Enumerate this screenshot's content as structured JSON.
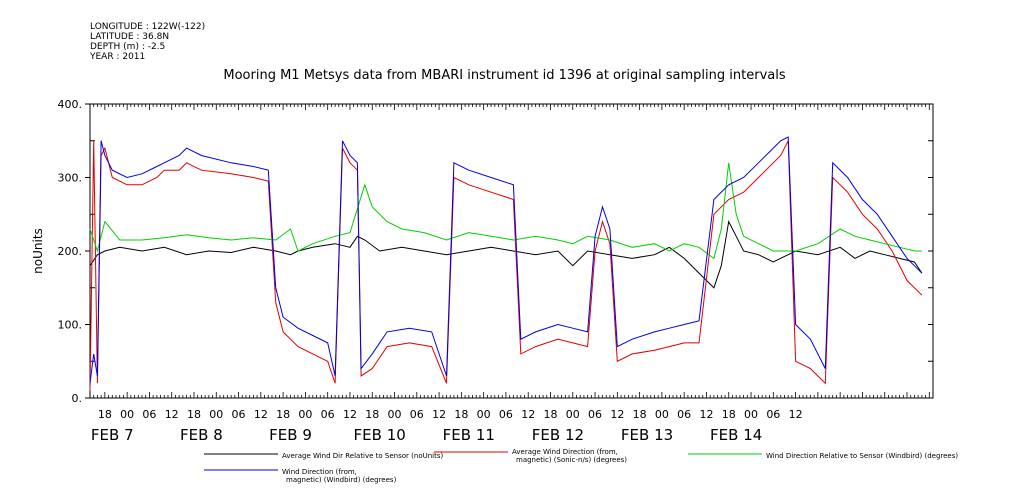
{
  "header": {
    "longitude": "LONGITUDE : 122W(-122)",
    "latitude": "LATITUDE : 36.8N",
    "depth": "DEPTH (m) : -2.5",
    "year": "YEAR : 2011"
  },
  "chart_data": {
    "type": "line",
    "title": "Mooring M1 Metsys data from MBARI instrument id 1396 at original sampling intervals",
    "ylabel": "noUnits",
    "xlabel": "",
    "ylim": [
      0,
      400
    ],
    "yticks": [
      "0.",
      "100.",
      "200.",
      "300.",
      "400."
    ],
    "xlim_hours": [
      -10,
      217
    ],
    "hour_ticks": [
      "18",
      "00",
      "06",
      "12",
      "18",
      "00",
      "06",
      "12",
      "18",
      "00",
      "06",
      "12",
      "18",
      "00",
      "06",
      "12",
      "18",
      "00",
      "06",
      "12",
      "18",
      "00",
      "06",
      "12",
      "18",
      "00",
      "06",
      "12",
      "18",
      "00",
      "06",
      "12"
    ],
    "day_labels": [
      "FEB  7",
      "FEB  8",
      "FEB  9",
      "FEB 10",
      "FEB 11",
      "FEB 12",
      "FEB 13",
      "FEB 14"
    ],
    "grid": false,
    "series": [
      {
        "name": "Average Wind Dir Relative to Sensor (noUnits)",
        "color": "#000000",
        "points": [
          [
            -10,
            180
          ],
          [
            -8,
            195
          ],
          [
            -6,
            200
          ],
          [
            -2,
            205
          ],
          [
            4,
            200
          ],
          [
            10,
            205
          ],
          [
            16,
            195
          ],
          [
            22,
            200
          ],
          [
            28,
            198
          ],
          [
            34,
            205
          ],
          [
            40,
            200
          ],
          [
            44,
            195
          ],
          [
            46,
            200
          ],
          [
            50,
            205
          ],
          [
            56,
            210
          ],
          [
            60,
            205
          ],
          [
            62,
            220
          ],
          [
            64,
            215
          ],
          [
            68,
            200
          ],
          [
            74,
            205
          ],
          [
            80,
            200
          ],
          [
            86,
            195
          ],
          [
            92,
            200
          ],
          [
            98,
            205
          ],
          [
            104,
            200
          ],
          [
            110,
            195
          ],
          [
            116,
            200
          ],
          [
            120,
            180
          ],
          [
            124,
            200
          ],
          [
            130,
            195
          ],
          [
            136,
            190
          ],
          [
            142,
            195
          ],
          [
            146,
            205
          ],
          [
            150,
            190
          ],
          [
            154,
            170
          ],
          [
            158,
            150
          ],
          [
            160,
            180
          ],
          [
            162,
            240
          ],
          [
            164,
            220
          ],
          [
            166,
            200
          ],
          [
            170,
            195
          ],
          [
            174,
            185
          ],
          [
            180,
            200
          ],
          [
            186,
            195
          ],
          [
            192,
            205
          ],
          [
            196,
            190
          ],
          [
            200,
            200
          ],
          [
            204,
            195
          ],
          [
            208,
            190
          ],
          [
            212,
            185
          ],
          [
            214,
            170
          ]
        ]
      },
      {
        "name": "Average Wind Direction (from, magnetic) (Sonic-n/s) (degrees)",
        "color": "#e00000",
        "points": [
          [
            -10,
            10
          ],
          [
            -9,
            350
          ],
          [
            -8,
            20
          ],
          [
            -7,
            330
          ],
          [
            -6,
            340
          ],
          [
            -4,
            300
          ],
          [
            0,
            290
          ],
          [
            4,
            290
          ],
          [
            8,
            300
          ],
          [
            10,
            310
          ],
          [
            14,
            310
          ],
          [
            16,
            320
          ],
          [
            20,
            310
          ],
          [
            28,
            305
          ],
          [
            34,
            300
          ],
          [
            38,
            295
          ],
          [
            40,
            130
          ],
          [
            42,
            90
          ],
          [
            46,
            70
          ],
          [
            50,
            60
          ],
          [
            54,
            50
          ],
          [
            56,
            20
          ],
          [
            58,
            340
          ],
          [
            60,
            320
          ],
          [
            62,
            310
          ],
          [
            63,
            30
          ],
          [
            66,
            40
          ],
          [
            70,
            70
          ],
          [
            76,
            75
          ],
          [
            82,
            70
          ],
          [
            86,
            20
          ],
          [
            88,
            300
          ],
          [
            92,
            290
          ],
          [
            98,
            280
          ],
          [
            104,
            270
          ],
          [
            106,
            60
          ],
          [
            110,
            70
          ],
          [
            116,
            80
          ],
          [
            120,
            75
          ],
          [
            124,
            70
          ],
          [
            126,
            200
          ],
          [
            128,
            240
          ],
          [
            130,
            210
          ],
          [
            132,
            50
          ],
          [
            136,
            60
          ],
          [
            142,
            65
          ],
          [
            146,
            70
          ],
          [
            150,
            75
          ],
          [
            154,
            75
          ],
          [
            158,
            250
          ],
          [
            162,
            270
          ],
          [
            166,
            280
          ],
          [
            170,
            300
          ],
          [
            174,
            320
          ],
          [
            176,
            330
          ],
          [
            178,
            350
          ],
          [
            180,
            50
          ],
          [
            184,
            40
          ],
          [
            188,
            20
          ],
          [
            190,
            300
          ],
          [
            194,
            280
          ],
          [
            198,
            250
          ],
          [
            202,
            230
          ],
          [
            206,
            200
          ],
          [
            210,
            160
          ],
          [
            212,
            150
          ],
          [
            214,
            140
          ]
        ]
      },
      {
        "name": "Wind Direction Relative to Sensor (Windbird) (degrees)",
        "color": "#00d000",
        "points": [
          [
            -10,
            230
          ],
          [
            -8,
            200
          ],
          [
            -6,
            240
          ],
          [
            -2,
            215
          ],
          [
            4,
            215
          ],
          [
            10,
            218
          ],
          [
            16,
            222
          ],
          [
            22,
            218
          ],
          [
            28,
            215
          ],
          [
            34,
            218
          ],
          [
            40,
            215
          ],
          [
            44,
            230
          ],
          [
            46,
            200
          ],
          [
            50,
            210
          ],
          [
            56,
            220
          ],
          [
            60,
            225
          ],
          [
            64,
            290
          ],
          [
            66,
            260
          ],
          [
            70,
            240
          ],
          [
            74,
            230
          ],
          [
            80,
            225
          ],
          [
            86,
            215
          ],
          [
            92,
            225
          ],
          [
            98,
            220
          ],
          [
            104,
            215
          ],
          [
            110,
            220
          ],
          [
            116,
            215
          ],
          [
            120,
            210
          ],
          [
            124,
            220
          ],
          [
            130,
            215
          ],
          [
            136,
            205
          ],
          [
            142,
            210
          ],
          [
            146,
            200
          ],
          [
            150,
            210
          ],
          [
            154,
            205
          ],
          [
            158,
            190
          ],
          [
            160,
            230
          ],
          [
            162,
            320
          ],
          [
            164,
            250
          ],
          [
            166,
            220
          ],
          [
            170,
            210
          ],
          [
            174,
            200
          ],
          [
            180,
            200
          ],
          [
            186,
            210
          ],
          [
            192,
            230
          ],
          [
            196,
            220
          ],
          [
            200,
            215
          ],
          [
            204,
            210
          ],
          [
            208,
            205
          ],
          [
            212,
            200
          ],
          [
            214,
            200
          ]
        ]
      },
      {
        "name": "Wind Direction (from, magnetic) (Windbird) (degrees)",
        "color": "#0000e0",
        "points": [
          [
            -10,
            20
          ],
          [
            -9,
            60
          ],
          [
            -8,
            30
          ],
          [
            -7,
            350
          ],
          [
            -6,
            330
          ],
          [
            -4,
            310
          ],
          [
            0,
            300
          ],
          [
            4,
            305
          ],
          [
            8,
            315
          ],
          [
            10,
            320
          ],
          [
            14,
            330
          ],
          [
            16,
            340
          ],
          [
            20,
            330
          ],
          [
            28,
            320
          ],
          [
            34,
            315
          ],
          [
            38,
            310
          ],
          [
            40,
            150
          ],
          [
            42,
            110
          ],
          [
            46,
            95
          ],
          [
            50,
            85
          ],
          [
            54,
            75
          ],
          [
            56,
            30
          ],
          [
            58,
            350
          ],
          [
            60,
            330
          ],
          [
            62,
            320
          ],
          [
            63,
            40
          ],
          [
            66,
            60
          ],
          [
            70,
            90
          ],
          [
            76,
            95
          ],
          [
            82,
            90
          ],
          [
            86,
            30
          ],
          [
            88,
            320
          ],
          [
            92,
            310
          ],
          [
            98,
            300
          ],
          [
            104,
            290
          ],
          [
            106,
            80
          ],
          [
            110,
            90
          ],
          [
            116,
            100
          ],
          [
            120,
            95
          ],
          [
            124,
            90
          ],
          [
            126,
            220
          ],
          [
            128,
            260
          ],
          [
            130,
            230
          ],
          [
            132,
            70
          ],
          [
            136,
            80
          ],
          [
            142,
            90
          ],
          [
            146,
            95
          ],
          [
            150,
            100
          ],
          [
            154,
            105
          ],
          [
            158,
            270
          ],
          [
            162,
            290
          ],
          [
            166,
            300
          ],
          [
            170,
            320
          ],
          [
            174,
            340
          ],
          [
            176,
            350
          ],
          [
            178,
            355
          ],
          [
            180,
            100
          ],
          [
            184,
            80
          ],
          [
            188,
            40
          ],
          [
            190,
            320
          ],
          [
            194,
            300
          ],
          [
            198,
            270
          ],
          [
            202,
            250
          ],
          [
            206,
            220
          ],
          [
            210,
            190
          ],
          [
            212,
            180
          ],
          [
            214,
            170
          ]
        ]
      }
    ],
    "legend": [
      {
        "line1": "Average Wind Dir Relative to Sensor (noUnits)",
        "line2": ""
      },
      {
        "line1": "Average Wind Direction (from,",
        "line2": "magnetic) (Sonic-n/s) (degrees)"
      },
      {
        "line1": "Wind Direction Relative to Sensor (Windbird) (degrees)",
        "line2": ""
      },
      {
        "line1": "Wind Direction (from,",
        "line2": "magnetic) (Windbird) (degrees)"
      }
    ]
  }
}
